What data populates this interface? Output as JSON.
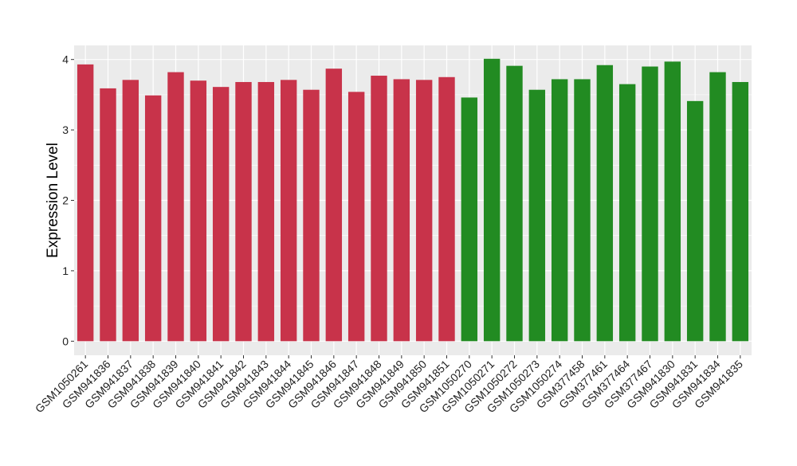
{
  "chart_data": {
    "type": "bar",
    "ylabel": "Expression Level",
    "xlabel": "",
    "title": "",
    "ylim": [
      -0.2,
      4.2
    ],
    "yticks": [
      0,
      1,
      2,
      3,
      4
    ],
    "grid": true,
    "legend": "none",
    "colors": {
      "group1": "#C8334A",
      "group2": "#228B22",
      "panel": "#EBEBEB",
      "grid": "#FFFFFF"
    },
    "categories": [
      "GSM1050261",
      "GSM941836",
      "GSM941837",
      "GSM941838",
      "GSM941839",
      "GSM941840",
      "GSM941841",
      "GSM941842",
      "GSM941843",
      "GSM941844",
      "GSM941845",
      "GSM941846",
      "GSM941847",
      "GSM941848",
      "GSM941849",
      "GSM941850",
      "GSM941851",
      "GSM1050270",
      "GSM1050271",
      "GSM1050272",
      "GSM1050273",
      "GSM1050274",
      "GSM377458",
      "GSM377461",
      "GSM377464",
      "GSM377467",
      "GSM941830",
      "GSM941831",
      "GSM941834",
      "GSM941835"
    ],
    "values": [
      3.93,
      3.59,
      3.71,
      3.49,
      3.82,
      3.7,
      3.61,
      3.68,
      3.68,
      3.71,
      3.57,
      3.87,
      3.54,
      3.77,
      3.72,
      3.71,
      3.75,
      3.46,
      4.01,
      3.91,
      3.57,
      3.72,
      3.72,
      3.92,
      3.65,
      3.9,
      3.97,
      3.41,
      3.82,
      3.68
    ],
    "groups": [
      1,
      1,
      1,
      1,
      1,
      1,
      1,
      1,
      1,
      1,
      1,
      1,
      1,
      1,
      1,
      1,
      1,
      2,
      2,
      2,
      2,
      2,
      2,
      2,
      2,
      2,
      2,
      2,
      2,
      2
    ]
  }
}
